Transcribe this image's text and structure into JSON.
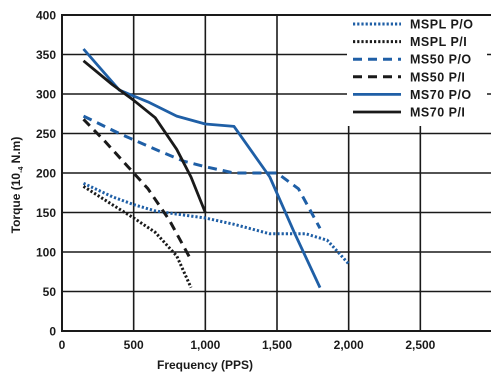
{
  "chart_data": {
    "type": "line",
    "xlabel": "Frequency (PPS)",
    "ylabel": "Torque (10-4 N.m)",
    "ylabel_parts": {
      "pre": "Torque (10",
      "sub": "-4",
      "post": " N.m)"
    },
    "xlim": [
      0,
      3000
    ],
    "ylim": [
      0,
      400
    ],
    "x_ticks": [
      0,
      500,
      1000,
      1500,
      2000,
      2500
    ],
    "x_tick_labels": [
      "0",
      "500",
      "1,000",
      "1,500",
      "2,000",
      "2,500"
    ],
    "y_ticks": [
      0,
      50,
      100,
      150,
      200,
      250,
      300,
      350,
      400
    ],
    "y_tick_labels": [
      "0",
      "50",
      "100",
      "150",
      "200",
      "250",
      "300",
      "350",
      "400"
    ],
    "grid": true,
    "legend_position": "top-right",
    "series": [
      {
        "name": "MSPL P/O",
        "color": "#1f5fa6",
        "style": "dotted",
        "x": [
          150,
          350,
          500,
          650,
          800,
          1000,
          1200,
          1450,
          1550,
          1700,
          1850,
          2000
        ],
        "y": [
          187,
          170,
          160,
          152,
          148,
          143,
          135,
          123,
          123,
          123,
          115,
          85
        ]
      },
      {
        "name": "MSPL P/I",
        "color": "#1a1a1a",
        "style": "dotted",
        "x": [
          150,
          350,
          500,
          650,
          800,
          900
        ],
        "y": [
          183,
          160,
          143,
          125,
          95,
          55
        ]
      },
      {
        "name": "MS50 P/O",
        "color": "#1f5fa6",
        "style": "dashed",
        "x": [
          150,
          400,
          650,
          850,
          1000,
          1200,
          1500,
          1650,
          1800
        ],
        "y": [
          272,
          250,
          230,
          215,
          208,
          200,
          200,
          180,
          130
        ]
      },
      {
        "name": "MS50 P/I",
        "color": "#1a1a1a",
        "style": "dashed",
        "x": [
          150,
          300,
          450,
          600,
          750,
          900
        ],
        "y": [
          268,
          240,
          210,
          180,
          140,
          90
        ]
      },
      {
        "name": "MS70 P/O",
        "color": "#1f5fa6",
        "style": "solid",
        "x": [
          150,
          400,
          600,
          800,
          1000,
          1200,
          1450,
          1620,
          1800
        ],
        "y": [
          357,
          305,
          290,
          272,
          262,
          259,
          195,
          125,
          55
        ]
      },
      {
        "name": "MS70 P/I",
        "color": "#1a1a1a",
        "style": "solid",
        "x": [
          150,
          350,
          500,
          650,
          800,
          900,
          1000
        ],
        "y": [
          342,
          312,
          292,
          270,
          230,
          195,
          150
        ]
      }
    ]
  }
}
